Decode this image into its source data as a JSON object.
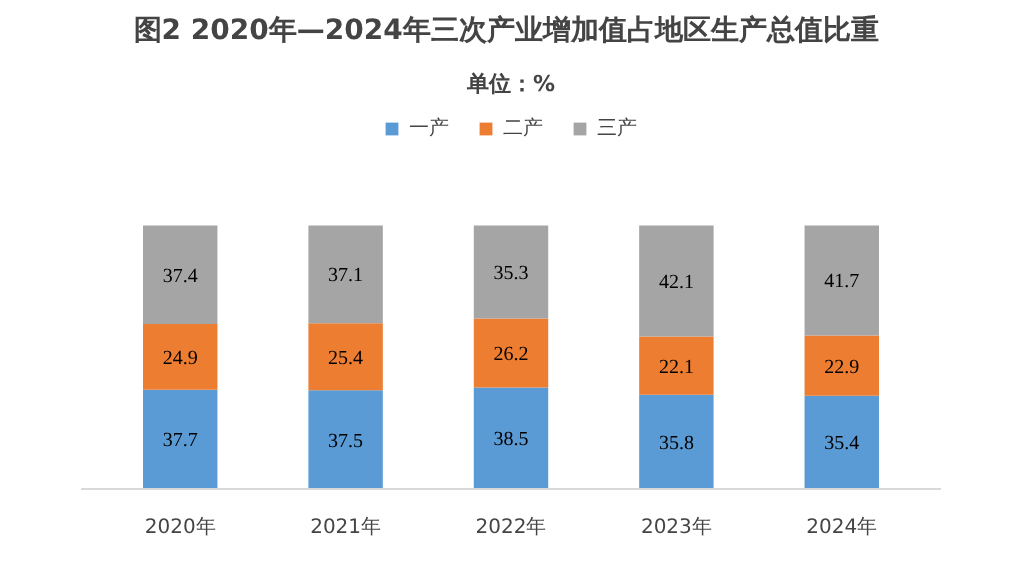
{
  "chart_data": {
    "type": "bar",
    "stacked": true,
    "data_labels": true,
    "title": "图2  2020年—2024年三次产业增加值占地区生产总值比重",
    "subtitle": "单位：%",
    "legend": "top",
    "grid": false,
    "categories": [
      "2020年",
      "2021年",
      "2022年",
      "2023年",
      "2024年"
    ],
    "series": [
      {
        "name": "一产",
        "color": "#5b9bd5",
        "values": [
          37.7,
          37.5,
          38.5,
          35.8,
          35.4
        ]
      },
      {
        "name": "二产",
        "color": "#ed7d31",
        "values": [
          24.9,
          25.4,
          26.2,
          22.1,
          22.9
        ]
      },
      {
        "name": "三产",
        "color": "#a5a5a5",
        "values": [
          37.4,
          37.1,
          35.3,
          42.1,
          41.7
        ]
      }
    ]
  }
}
